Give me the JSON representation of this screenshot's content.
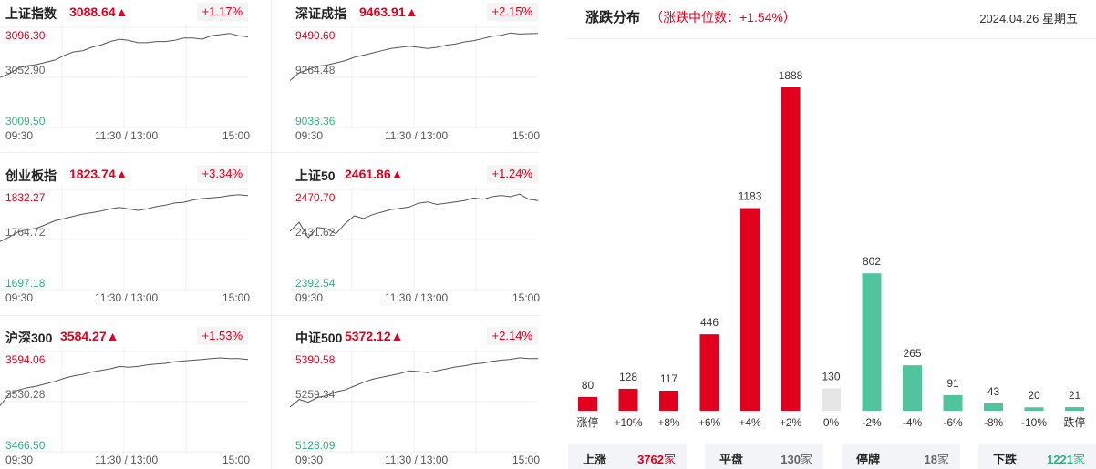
{
  "indices": [
    {
      "name": "上证指数",
      "price": "3088.64▲",
      "change_pct": "+1.17%",
      "y_labels": [
        "3096.30",
        "3052.90",
        "3009.50"
      ],
      "x_labels": [
        "09:30",
        "11:30 / 13:00",
        "15:00"
      ],
      "ylim": [
        3009.5,
        3096.3
      ],
      "prev_close": 3052.9,
      "chart_data": {
        "type": "line",
        "x_labels": [
          "09:30",
          "11:30 / 13:00",
          "15:00"
        ],
        "ylim": [
          3009.5,
          3096.3
        ],
        "series": [
          {
            "values": [
              3052.9,
              3056,
              3061,
              3063,
              3064,
              3066,
              3068,
              3072,
              3075,
              3076,
              3079,
              3081,
              3084,
              3086,
              3085,
              3083,
              3083,
              3084,
              3084,
              3085,
              3087,
              3087,
              3086,
              3089,
              3090,
              3091,
              3089,
              3088
            ]
          }
        ]
      }
    },
    {
      "name": "深证成指",
      "price": "9463.91▲",
      "change_pct": "+2.15%",
      "y_labels": [
        "9490.60",
        "9264.48",
        "9038.36"
      ],
      "x_labels": [
        "09:30",
        "11:30 / 13:00",
        "15:00"
      ],
      "ylim": [
        9038.36,
        9490.6
      ],
      "prev_close": 9264.48,
      "chart_data": {
        "type": "line",
        "x_labels": [
          "09:30",
          "11:30 / 13:00",
          "15:00"
        ],
        "ylim": [
          9038.36,
          9490.6
        ],
        "series": [
          {
            "values": [
              9250,
              9285,
              9300,
              9315,
              9320,
              9330,
              9340,
              9355,
              9365,
              9375,
              9385,
              9395,
              9400,
              9405,
              9400,
              9395,
              9400,
              9410,
              9415,
              9425,
              9430,
              9440,
              9450,
              9455,
              9465,
              9460,
              9462,
              9463
            ]
          }
        ]
      }
    },
    {
      "name": "创业板指",
      "price": "1823.74▲",
      "change_pct": "+3.34%",
      "y_labels": [
        "1832.27",
        "1764.72",
        "1697.18"
      ],
      "x_labels": [
        "09:30",
        "11:30 / 13:00",
        "15:00"
      ],
      "ylim": [
        1697.18,
        1832.27
      ],
      "prev_close": 1764.72,
      "chart_data": {
        "type": "line",
        "x_labels": [
          "09:30",
          "11:30 / 13:00",
          "15:00"
        ],
        "ylim": [
          1697.18,
          1832.27
        ],
        "series": [
          {
            "values": [
              1762,
              1768,
              1775,
              1778,
              1780,
              1785,
              1790,
              1793,
              1796,
              1799,
              1801,
              1803,
              1806,
              1808,
              1806,
              1804,
              1806,
              1809,
              1811,
              1814,
              1815,
              1818,
              1820,
              1821,
              1822,
              1824,
              1825,
              1824
            ]
          }
        ]
      }
    },
    {
      "name": "上证50",
      "price": "2461.86▲",
      "change_pct": "+1.24%",
      "y_labels": [
        "2470.70",
        "2431.62",
        "2392.54"
      ],
      "x_labels": [
        "09:30",
        "11:30 / 13:00",
        "15:00"
      ],
      "ylim": [
        2392.54,
        2470.7
      ],
      "prev_close": 2431.62,
      "chart_data": {
        "type": "line",
        "x_labels": [
          "09:30",
          "11:30 / 13:00",
          "15:00"
        ],
        "ylim": [
          2392.54,
          2470.7
        ],
        "series": [
          {
            "values": [
              2438,
              2445,
              2433,
              2441,
              2440,
              2436,
              2444,
              2450,
              2448,
              2451,
              2453,
              2455,
              2456,
              2457,
              2460,
              2461,
              2459,
              2460,
              2461,
              2462,
              2464,
              2463,
              2465,
              2466,
              2465,
              2467,
              2463,
              2462
            ]
          }
        ]
      }
    },
    {
      "name": "沪深300",
      "price": "3584.27▲",
      "change_pct": "+1.53%",
      "y_labels": [
        "3594.06",
        "3530.28",
        "3466.50"
      ],
      "x_labels": [
        "09:30",
        "11:30 / 13:00",
        "15:00"
      ],
      "ylim": [
        3466.5,
        3594.06
      ],
      "prev_close": 3530.28,
      "chart_data": {
        "type": "line",
        "x_labels": [
          "09:30",
          "11:30 / 13:00",
          "15:00"
        ],
        "ylim": [
          3466.5,
          3594.06
        ],
        "series": [
          {
            "values": [
              3525,
              3540,
              3545,
              3548,
              3550,
              3553,
              3556,
              3560,
              3563,
              3565,
              3568,
              3570,
              3572,
              3575,
              3574,
              3575,
              3577,
              3578,
              3579,
              3581,
              3582,
              3583,
              3584,
              3585,
              3586,
              3585,
              3585,
              3584
            ]
          }
        ]
      }
    },
    {
      "name": "中证500",
      "price": "5372.12▲",
      "change_pct": "+2.14%",
      "y_labels": [
        "5390.58",
        "5259.34",
        "5128.09"
      ],
      "x_labels": [
        "09:30",
        "11:30 / 13:00",
        "15:00"
      ],
      "ylim": [
        5128.09,
        5390.58
      ],
      "prev_close": 5259.34,
      "chart_data": {
        "type": "line",
        "x_labels": [
          "09:30",
          "11:30 / 13:00",
          "15:00"
        ],
        "ylim": [
          5128.09,
          5390.58
        ],
        "series": [
          {
            "values": [
              5245,
              5265,
              5258,
              5270,
              5275,
              5285,
              5290,
              5300,
              5310,
              5318,
              5323,
              5328,
              5333,
              5340,
              5338,
              5335,
              5340,
              5345,
              5350,
              5353,
              5358,
              5360,
              5365,
              5368,
              5370,
              5374,
              5372,
              5372
            ]
          }
        ]
      }
    }
  ],
  "distribution": {
    "title": "涨跌分布",
    "median_text": "（涨跌中位数：+1.54%）",
    "date": "2024.04.26 星期五",
    "colors": {
      "up": "#e1001e",
      "flat": "#e6e6e6",
      "down": "#52c49d"
    },
    "chart_data": {
      "type": "bar",
      "categories": [
        "涨停",
        "+10%",
        "+8%",
        "+6%",
        "+4%",
        "+2%",
        "0%",
        "-2%",
        "-4%",
        "-6%",
        "-8%",
        "-10%",
        "跌停"
      ],
      "values": [
        80,
        128,
        117,
        446,
        1183,
        1888,
        130,
        802,
        265,
        91,
        43,
        20,
        21
      ],
      "groups": [
        "up",
        "up",
        "up",
        "up",
        "up",
        "up",
        "flat",
        "down",
        "down",
        "down",
        "down",
        "down",
        "down"
      ]
    }
  },
  "summary": [
    {
      "label": "上涨",
      "count": "3762",
      "unit": "家",
      "tone": "up"
    },
    {
      "label": "平盘",
      "count": "130",
      "unit": "家",
      "tone": "gray"
    },
    {
      "label": "停牌",
      "count": "18",
      "unit": "家",
      "tone": "gray"
    },
    {
      "label": "下跌",
      "count": "1221",
      "unit": "家",
      "tone": "down"
    }
  ]
}
